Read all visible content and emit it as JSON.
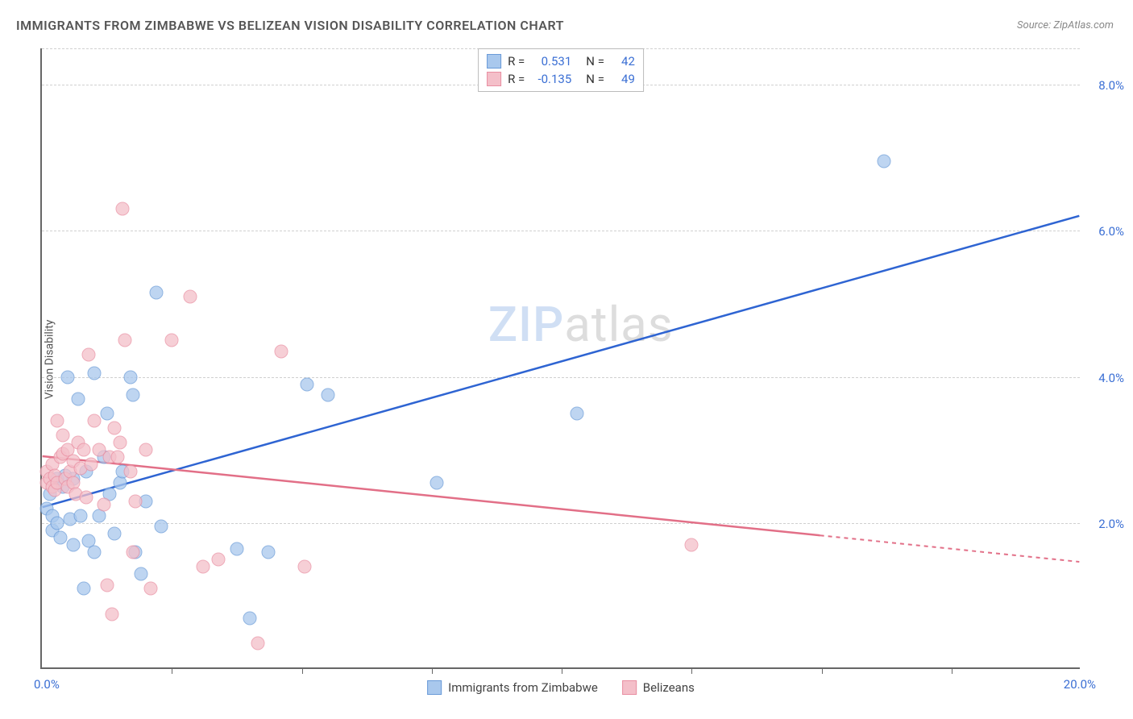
{
  "title": "IMMIGRANTS FROM ZIMBABWE VS BELIZEAN VISION DISABILITY CORRELATION CHART",
  "source": "Source: ZipAtlas.com",
  "y_axis_label": "Vision Disability",
  "watermark": {
    "part1": "ZIP",
    "part2": "atlas"
  },
  "chart": {
    "type": "scatter",
    "xlim": [
      0,
      20
    ],
    "ylim": [
      0,
      8.5
    ],
    "x_origin_label": "0.0%",
    "x_max_label": "20.0%",
    "y_ticks": [
      {
        "value": 2.0,
        "label": "2.0%"
      },
      {
        "value": 4.0,
        "label": "4.0%"
      },
      {
        "value": 6.0,
        "label": "6.0%"
      },
      {
        "value": 8.0,
        "label": "8.0%"
      }
    ],
    "x_minor_ticks": [
      2.5,
      5.0,
      7.5,
      10.0,
      12.5,
      15.0,
      17.5
    ],
    "background_color": "#ffffff",
    "grid_color": "#d0d0d0",
    "marker_radius": 8.5,
    "series": [
      {
        "name": "Immigrants from Zimbabwe",
        "fill": "#a9c8ed",
        "stroke": "#6a9bd8",
        "line_color": "#2e64d2",
        "r_value": "0.531",
        "n_value": "42",
        "regression": {
          "x1": 0,
          "y1": 2.2,
          "x2": 20,
          "y2": 6.2,
          "dash_from_x": 20
        },
        "points": [
          [
            0.1,
            2.2
          ],
          [
            0.15,
            2.4
          ],
          [
            0.2,
            1.9
          ],
          [
            0.2,
            2.1
          ],
          [
            0.3,
            2.6
          ],
          [
            0.3,
            2.0
          ],
          [
            0.35,
            1.8
          ],
          [
            0.4,
            2.5
          ],
          [
            0.45,
            2.65
          ],
          [
            0.5,
            4.0
          ],
          [
            0.55,
            2.05
          ],
          [
            0.6,
            1.7
          ],
          [
            0.6,
            2.6
          ],
          [
            0.7,
            3.7
          ],
          [
            0.75,
            2.1
          ],
          [
            0.8,
            1.1
          ],
          [
            0.85,
            2.7
          ],
          [
            0.9,
            1.75
          ],
          [
            1.0,
            1.6
          ],
          [
            1.0,
            4.05
          ],
          [
            1.1,
            2.1
          ],
          [
            1.2,
            2.9
          ],
          [
            1.25,
            3.5
          ],
          [
            1.3,
            2.4
          ],
          [
            1.4,
            1.85
          ],
          [
            1.5,
            2.55
          ],
          [
            1.55,
            2.7
          ],
          [
            1.7,
            4.0
          ],
          [
            1.75,
            3.75
          ],
          [
            1.8,
            1.6
          ],
          [
            1.9,
            1.3
          ],
          [
            2.0,
            2.3
          ],
          [
            2.2,
            5.15
          ],
          [
            2.3,
            1.95
          ],
          [
            3.75,
            1.65
          ],
          [
            4.0,
            0.7
          ],
          [
            4.35,
            1.6
          ],
          [
            5.1,
            3.9
          ],
          [
            5.5,
            3.75
          ],
          [
            7.6,
            2.55
          ],
          [
            10.3,
            3.5
          ],
          [
            16.2,
            6.95
          ]
        ]
      },
      {
        "name": "Belizeans",
        "fill": "#f4bfc9",
        "stroke": "#e98fa2",
        "line_color": "#e26f87",
        "r_value": "-0.135",
        "n_value": "49",
        "regression": {
          "x1": 0,
          "y1": 2.9,
          "x2": 20,
          "y2": 1.45,
          "dash_from_x": 15
        },
        "points": [
          [
            0.1,
            2.55
          ],
          [
            0.1,
            2.7
          ],
          [
            0.15,
            2.6
          ],
          [
            0.2,
            2.5
          ],
          [
            0.2,
            2.8
          ],
          [
            0.25,
            2.45
          ],
          [
            0.25,
            2.65
          ],
          [
            0.3,
            2.55
          ],
          [
            0.3,
            3.4
          ],
          [
            0.35,
            2.9
          ],
          [
            0.4,
            2.95
          ],
          [
            0.4,
            3.2
          ],
          [
            0.45,
            2.6
          ],
          [
            0.5,
            2.5
          ],
          [
            0.5,
            3.0
          ],
          [
            0.55,
            2.7
          ],
          [
            0.6,
            2.55
          ],
          [
            0.6,
            2.85
          ],
          [
            0.65,
            2.4
          ],
          [
            0.7,
            3.1
          ],
          [
            0.75,
            2.75
          ],
          [
            0.8,
            3.0
          ],
          [
            0.85,
            2.35
          ],
          [
            0.9,
            4.3
          ],
          [
            0.95,
            2.8
          ],
          [
            1.0,
            3.4
          ],
          [
            1.1,
            3.0
          ],
          [
            1.2,
            2.25
          ],
          [
            1.25,
            1.15
          ],
          [
            1.3,
            2.9
          ],
          [
            1.35,
            0.75
          ],
          [
            1.4,
            3.3
          ],
          [
            1.45,
            2.9
          ],
          [
            1.5,
            3.1
          ],
          [
            1.55,
            6.3
          ],
          [
            1.6,
            4.5
          ],
          [
            1.7,
            2.7
          ],
          [
            1.75,
            1.6
          ],
          [
            1.8,
            2.3
          ],
          [
            2.0,
            3.0
          ],
          [
            2.1,
            1.1
          ],
          [
            2.5,
            4.5
          ],
          [
            2.85,
            5.1
          ],
          [
            3.1,
            1.4
          ],
          [
            3.4,
            1.5
          ],
          [
            4.15,
            0.35
          ],
          [
            4.6,
            4.35
          ],
          [
            5.05,
            1.4
          ],
          [
            12.5,
            1.7
          ]
        ]
      }
    ]
  },
  "stat_legend": {
    "rows": [
      {
        "swatch_fill": "#a9c8ed",
        "swatch_stroke": "#6a9bd8",
        "r_label": "R =",
        "r_val": "0.531",
        "n_label": "N =",
        "n_val": "42"
      },
      {
        "swatch_fill": "#f4bfc9",
        "swatch_stroke": "#e98fa2",
        "r_label": "R =",
        "r_val": "-0.135",
        "n_label": "N =",
        "n_val": "49"
      }
    ]
  },
  "series_legend": [
    {
      "swatch_fill": "#a9c8ed",
      "swatch_stroke": "#6a9bd8",
      "label": "Immigrants from Zimbabwe"
    },
    {
      "swatch_fill": "#f4bfc9",
      "swatch_stroke": "#e98fa2",
      "label": "Belizeans"
    }
  ]
}
